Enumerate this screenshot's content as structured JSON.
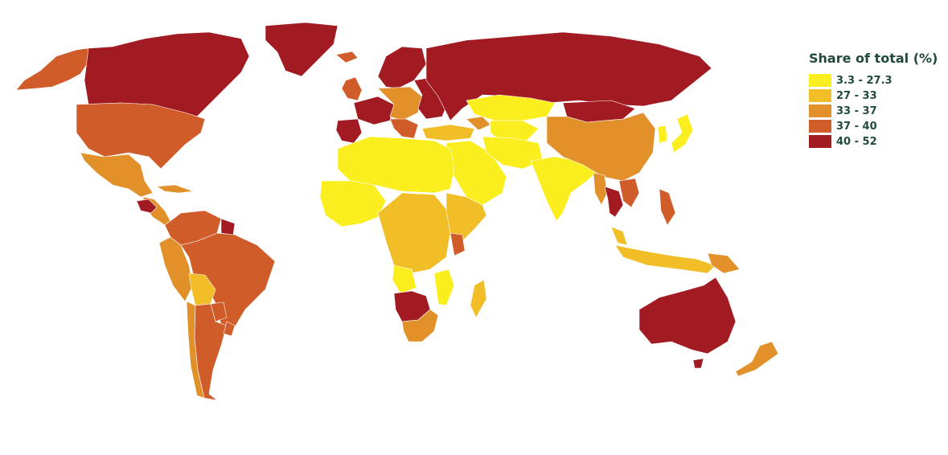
{
  "legend": {
    "title": "Share of total (%)",
    "items": [
      {
        "label": "3.3 - 27.3",
        "color": "#fbee1f"
      },
      {
        "label": "27 - 33",
        "color": "#f1be27"
      },
      {
        "label": "33 - 37",
        "color": "#e1902a"
      },
      {
        "label": "37 - 40",
        "color": "#d05c29"
      },
      {
        "label": "40 - 52",
        "color": "#a31b22"
      }
    ]
  },
  "regions": [
    {
      "name": "alaska",
      "color": "#d05c29"
    },
    {
      "name": "canada",
      "color": "#a31b22"
    },
    {
      "name": "greenland",
      "color": "#a31b22"
    },
    {
      "name": "united-states",
      "color": "#d05c29"
    },
    {
      "name": "mexico",
      "color": "#e1902a"
    },
    {
      "name": "central-america",
      "color": "#e1902a"
    },
    {
      "name": "guatemala-honduras",
      "color": "#a31b22"
    },
    {
      "name": "cuba",
      "color": "#e1902a"
    },
    {
      "name": "colombia-venezuela",
      "color": "#d05c29"
    },
    {
      "name": "guianas",
      "color": "#a31b22"
    },
    {
      "name": "ecuador-peru",
      "color": "#e1902a"
    },
    {
      "name": "brazil",
      "color": "#d05c29"
    },
    {
      "name": "bolivia",
      "color": "#f1be27"
    },
    {
      "name": "paraguay",
      "color": "#d05c29"
    },
    {
      "name": "chile",
      "color": "#e1902a"
    },
    {
      "name": "argentina",
      "color": "#d05c29"
    },
    {
      "name": "uruguay",
      "color": "#d05c29"
    },
    {
      "name": "iceland",
      "color": "#d05c29"
    },
    {
      "name": "uk-ireland",
      "color": "#d05c29"
    },
    {
      "name": "scandinavia",
      "color": "#a31b22"
    },
    {
      "name": "western-europe",
      "color": "#a31b22"
    },
    {
      "name": "iberia",
      "color": "#a31b22"
    },
    {
      "name": "central-europe",
      "color": "#e1902a"
    },
    {
      "name": "balkans",
      "color": "#d05c29"
    },
    {
      "name": "eastern-europe",
      "color": "#a31b22"
    },
    {
      "name": "russia",
      "color": "#a31b22"
    },
    {
      "name": "turkey",
      "color": "#f1be27"
    },
    {
      "name": "caucasus",
      "color": "#e1902a"
    },
    {
      "name": "kazakhstan",
      "color": "#fbee1f"
    },
    {
      "name": "central-asia",
      "color": "#fbee1f"
    },
    {
      "name": "middle-east",
      "color": "#fbee1f"
    },
    {
      "name": "iran-afghanistan",
      "color": "#fbee1f"
    },
    {
      "name": "south-asia",
      "color": "#fbee1f"
    },
    {
      "name": "mongolia",
      "color": "#a31b22"
    },
    {
      "name": "china",
      "color": "#e1902a"
    },
    {
      "name": "korea",
      "color": "#fbee1f"
    },
    {
      "name": "japan",
      "color": "#fbee1f"
    },
    {
      "name": "myanmar",
      "color": "#e1902a"
    },
    {
      "name": "thailand",
      "color": "#a31b22"
    },
    {
      "name": "vietnam-laos",
      "color": "#d05c29"
    },
    {
      "name": "philippines",
      "color": "#d05c29"
    },
    {
      "name": "malaysia",
      "color": "#f1be27"
    },
    {
      "name": "indonesia",
      "color": "#f1be27"
    },
    {
      "name": "papua-new-guinea",
      "color": "#e1902a"
    },
    {
      "name": "north-africa",
      "color": "#fbee1f"
    },
    {
      "name": "west-africa",
      "color": "#fbee1f"
    },
    {
      "name": "central-africa",
      "color": "#f1be27"
    },
    {
      "name": "east-africa",
      "color": "#f1be27"
    },
    {
      "name": "kenya",
      "color": "#d05c29"
    },
    {
      "name": "angola",
      "color": "#fbee1f"
    },
    {
      "name": "namibia-botswana",
      "color": "#a31b22"
    },
    {
      "name": "mozambique",
      "color": "#fbee1f"
    },
    {
      "name": "south-africa",
      "color": "#e1902a"
    },
    {
      "name": "madagascar",
      "color": "#f1be27"
    },
    {
      "name": "australia",
      "color": "#a31b22"
    },
    {
      "name": "tasmania",
      "color": "#a31b22"
    },
    {
      "name": "new-zealand",
      "color": "#e1902a"
    }
  ]
}
